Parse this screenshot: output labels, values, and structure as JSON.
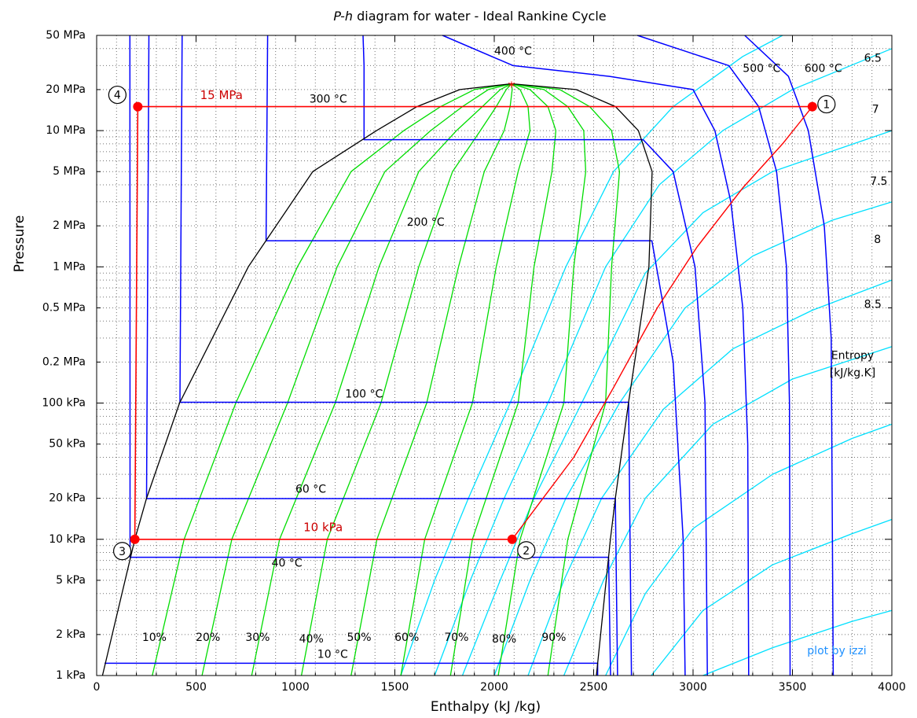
{
  "chart_data": {
    "type": "line",
    "title_italic": "P-h",
    "title_rest": " diagram for water - Ideal Rankine Cycle",
    "xlabel": "Enthalpy (kJ /kg)",
    "ylabel": "Pressure",
    "xlim": [
      0,
      4000
    ],
    "ylim_kPa": [
      1,
      50000
    ],
    "y_scale": "log",
    "grid": true,
    "x_ticks": [
      {
        "value": 0,
        "label": "0"
      },
      {
        "value": 500,
        "label": "500"
      },
      {
        "value": 1000,
        "label": "1000"
      },
      {
        "value": 1500,
        "label": "1500"
      },
      {
        "value": 2000,
        "label": "2000"
      },
      {
        "value": 2500,
        "label": "2500"
      },
      {
        "value": 3000,
        "label": "3000"
      },
      {
        "value": 3500,
        "label": "3500"
      },
      {
        "value": 4000,
        "label": "4000"
      }
    ],
    "y_ticks": [
      {
        "value": 50000,
        "label": "50 MPa"
      },
      {
        "value": 20000,
        "label": "20 MPa"
      },
      {
        "value": 10000,
        "label": "10 MPa"
      },
      {
        "value": 5000,
        "label": "5 MPa"
      },
      {
        "value": 2000,
        "label": "2 MPa"
      },
      {
        "value": 1000,
        "label": "1 MPa"
      },
      {
        "value": 500,
        "label": "0.5 MPa"
      },
      {
        "value": 200,
        "label": "0.2 MPa"
      },
      {
        "value": 100,
        "label": "100 kPa"
      },
      {
        "value": 50,
        "label": "50 kPa"
      },
      {
        "value": 20,
        "label": "20 kPa"
      },
      {
        "value": 10,
        "label": "10 kPa"
      },
      {
        "value": 5,
        "label": "5 kPa"
      },
      {
        "value": 2,
        "label": "2 kPa"
      },
      {
        "value": 1,
        "label": "1 kPa"
      }
    ],
    "colors": {
      "cycle": "#ff0000",
      "dome": "#000000",
      "isotherm": "#0000ff",
      "quality": "#00dd00",
      "entropy": "#00e0ff",
      "credit": "#1e90ff",
      "label_red": "#cc0000"
    },
    "saturation_dome": [
      [
        29.3,
        1
      ],
      [
        192,
        10
      ],
      [
        251,
        20
      ],
      [
        417,
        100
      ],
      [
        763,
        1000
      ],
      [
        1087,
        5000
      ],
      [
        1408,
        10000
      ],
      [
        1611,
        15000
      ],
      [
        1827,
        20000
      ],
      [
        2087,
        22064
      ],
      [
        2412,
        20000
      ],
      [
        2610,
        15000
      ],
      [
        2725,
        10000
      ],
      [
        2794,
        5000
      ],
      [
        2778,
        1000
      ],
      [
        2675,
        100
      ],
      [
        2609,
        20
      ],
      [
        2584,
        10
      ],
      [
        2514,
        1
      ]
    ],
    "quality_lines": [
      {
        "label": "10%",
        "points": [
          [
            280,
            1
          ],
          [
            440,
            10
          ],
          [
            700,
            100
          ],
          [
            1010,
            1000
          ],
          [
            1280,
            5000
          ],
          [
            1545,
            10000
          ],
          [
            1730,
            15000
          ],
          [
            1900,
            20000
          ],
          [
            2087,
            22064
          ]
        ]
      },
      {
        "label": "20%",
        "points": [
          [
            530,
            1
          ],
          [
            680,
            10
          ],
          [
            960,
            100
          ],
          [
            1210,
            1000
          ],
          [
            1450,
            5000
          ],
          [
            1680,
            10000
          ],
          [
            1840,
            15000
          ],
          [
            1970,
            20000
          ],
          [
            2087,
            22064
          ]
        ]
      },
      {
        "label": "30%",
        "points": [
          [
            780,
            1
          ],
          [
            920,
            10
          ],
          [
            1200,
            100
          ],
          [
            1420,
            1000
          ],
          [
            1620,
            5000
          ],
          [
            1810,
            10000
          ],
          [
            1940,
            15000
          ],
          [
            2030,
            20000
          ],
          [
            2087,
            22064
          ]
        ]
      },
      {
        "label": "40%",
        "points": [
          [
            1030,
            1
          ],
          [
            1160,
            10
          ],
          [
            1430,
            100
          ],
          [
            1620,
            1000
          ],
          [
            1790,
            5000
          ],
          [
            1930,
            10000
          ],
          [
            2010,
            15000
          ],
          [
            2060,
            20000
          ],
          [
            2087,
            22064
          ]
        ]
      },
      {
        "label": "50%",
        "points": [
          [
            1280,
            1
          ],
          [
            1410,
            10
          ],
          [
            1660,
            100
          ],
          [
            1820,
            1000
          ],
          [
            1950,
            5000
          ],
          [
            2050,
            10000
          ],
          [
            2080,
            15000
          ],
          [
            2090,
            20000
          ],
          [
            2087,
            22064
          ]
        ]
      },
      {
        "label": "60%",
        "points": [
          [
            1530,
            1
          ],
          [
            1650,
            10
          ],
          [
            1890,
            100
          ],
          [
            2010,
            1000
          ],
          [
            2120,
            5000
          ],
          [
            2180,
            10000
          ],
          [
            2170,
            15000
          ],
          [
            2130,
            20000
          ],
          [
            2087,
            22064
          ]
        ]
      },
      {
        "label": "70%",
        "points": [
          [
            1780,
            1
          ],
          [
            1890,
            10
          ],
          [
            2120,
            100
          ],
          [
            2200,
            1000
          ],
          [
            2290,
            5000
          ],
          [
            2310,
            10000
          ],
          [
            2270,
            15000
          ],
          [
            2180,
            20000
          ],
          [
            2087,
            22064
          ]
        ]
      },
      {
        "label": "80%",
        "points": [
          [
            2020,
            1
          ],
          [
            2130,
            10
          ],
          [
            2350,
            100
          ],
          [
            2400,
            1000
          ],
          [
            2460,
            5000
          ],
          [
            2450,
            10000
          ],
          [
            2370,
            15000
          ],
          [
            2250,
            20000
          ],
          [
            2087,
            22064
          ]
        ]
      },
      {
        "label": "90%",
        "points": [
          [
            2270,
            1
          ],
          [
            2370,
            10
          ],
          [
            2560,
            100
          ],
          [
            2590,
            1000
          ],
          [
            2630,
            5000
          ],
          [
            2590,
            10000
          ],
          [
            2480,
            15000
          ],
          [
            2330,
            20000
          ],
          [
            2087,
            22064
          ]
        ]
      }
    ],
    "quality_label_positions": [
      [
        290,
        1.8
      ],
      [
        560,
        1.8
      ],
      [
        810,
        1.8
      ],
      [
        1080,
        1.75
      ],
      [
        1320,
        1.8
      ],
      [
        1560,
        1.8
      ],
      [
        1810,
        1.8
      ],
      [
        2050,
        1.75
      ],
      [
        2300,
        1.8
      ]
    ],
    "isotherms": [
      {
        "label": "10 °C",
        "label_at": [
          1110,
          1.35
        ],
        "points": [
          [
            40,
            1.23
          ],
          [
            2520,
            1.23
          ],
          [
            2520,
            1
          ]
        ]
      },
      {
        "label": "40 °C",
        "label_at": [
          880,
          6.3
        ],
        "points": [
          [
            167,
            50000
          ],
          [
            168,
            7.38
          ],
          [
            2575,
            7.38
          ],
          [
            2585,
            1
          ]
        ]
      },
      {
        "label": "60 °C",
        "label_at": [
          1000,
          22
        ],
        "points": [
          [
            263,
            50000
          ],
          [
            251,
            19.9
          ],
          [
            2609,
            19.9
          ],
          [
            2620,
            1
          ]
        ]
      },
      {
        "label": "100 °C",
        "label_at": [
          1250,
          110
        ],
        "points": [
          [
            430,
            50000
          ],
          [
            419,
            101.4
          ],
          [
            2676,
            101.4
          ],
          [
            2690,
            1
          ]
        ]
      },
      {
        "label": "200 °C",
        "label_at": [
          1560,
          2000
        ],
        "points": [
          [
            860,
            50000
          ],
          [
            852,
            1555
          ],
          [
            2793,
            1555
          ],
          [
            2900,
            200
          ],
          [
            2950,
            10
          ],
          [
            2960,
            1
          ]
        ]
      },
      {
        "label": "300 °C",
        "label_at": [
          1070,
          16000
        ],
        "points": [
          [
            1340,
            50000
          ],
          [
            1345,
            30000
          ],
          [
            1345,
            8581
          ],
          [
            2749,
            8581
          ],
          [
            2900,
            5000
          ],
          [
            3010,
            1000
          ],
          [
            3060,
            100
          ],
          [
            3072,
            1
          ]
        ]
      },
      {
        "label": "400 °C",
        "label_at": [
          2000,
          36000
        ],
        "points": [
          [
            1740,
            50000
          ],
          [
            2095,
            30000
          ],
          [
            2580,
            25000
          ],
          [
            3000,
            20000
          ],
          [
            3110,
            10000
          ],
          [
            3190,
            3000
          ],
          [
            3250,
            500
          ],
          [
            3275,
            50
          ],
          [
            3280,
            1
          ]
        ]
      },
      {
        "label": "500 °C",
        "label_at": [
          3250,
          27000
        ],
        "points": [
          [
            2720,
            50000
          ],
          [
            3180,
            30000
          ],
          [
            3330,
            15000
          ],
          [
            3420,
            5000
          ],
          [
            3470,
            1000
          ],
          [
            3485,
            100
          ],
          [
            3488,
            1
          ]
        ]
      },
      {
        "label": "600 °C",
        "label_at": [
          3560,
          27000
        ],
        "points": [
          [
            3260,
            50000
          ],
          [
            3480,
            25000
          ],
          [
            3580,
            10000
          ],
          [
            3660,
            2000
          ],
          [
            3695,
            300
          ],
          [
            3705,
            1
          ]
        ]
      }
    ],
    "entropy_lines": [
      {
        "label": "6.5",
        "label_at": [
          3860,
          32000
        ],
        "points": [
          [
            1530,
            1
          ],
          [
            1700,
            5
          ],
          [
            1870,
            20
          ],
          [
            2080,
            100
          ],
          [
            2360,
            1000
          ],
          [
            2600,
            5000
          ],
          [
            2900,
            15000
          ],
          [
            3250,
            35000
          ],
          [
            3450,
            50000
          ]
        ]
      },
      {
        "label": "7",
        "label_at": [
          3900,
          13500
        ],
        "points": [
          [
            1700,
            1
          ],
          [
            1880,
            5
          ],
          [
            2050,
            20
          ],
          [
            2270,
            100
          ],
          [
            2560,
            1000
          ],
          [
            2830,
            4000
          ],
          [
            3150,
            10000
          ],
          [
            3500,
            20000
          ],
          [
            4000,
            40000
          ]
        ]
      },
      {
        "label": "7.5",
        "label_at": [
          3890,
          4000
        ],
        "points": [
          [
            1840,
            1
          ],
          [
            2030,
            5
          ],
          [
            2200,
            20
          ],
          [
            2440,
            100
          ],
          [
            2760,
            900
          ],
          [
            3050,
            2500
          ],
          [
            3400,
            5000
          ],
          [
            4000,
            10000
          ]
        ]
      },
      {
        "label": "8",
        "label_at": [
          3910,
          1500
        ],
        "points": [
          [
            2000,
            1
          ],
          [
            2180,
            5
          ],
          [
            2360,
            20
          ],
          [
            2630,
            100
          ],
          [
            2960,
            500
          ],
          [
            3300,
            1200
          ],
          [
            3700,
            2200
          ],
          [
            4000,
            3000
          ]
        ]
      },
      {
        "label": "8.5",
        "label_at": [
          3860,
          500
        ],
        "points": [
          [
            2170,
            1
          ],
          [
            2350,
            5
          ],
          [
            2540,
            20
          ],
          [
            2850,
            90
          ],
          [
            3200,
            250
          ],
          [
            3600,
            480
          ],
          [
            4000,
            800
          ]
        ]
      },
      {
        "label": "",
        "label_at": null,
        "points": [
          [
            2350,
            1
          ],
          [
            2550,
            5
          ],
          [
            2760,
            20
          ],
          [
            3100,
            70
          ],
          [
            3500,
            150
          ],
          [
            4000,
            260
          ]
        ]
      },
      {
        "label": "",
        "label_at": null,
        "points": [
          [
            2560,
            1
          ],
          [
            2760,
            4
          ],
          [
            3000,
            12
          ],
          [
            3400,
            30
          ],
          [
            3800,
            55
          ],
          [
            4000,
            70
          ]
        ]
      },
      {
        "label": "",
        "label_at": null,
        "points": [
          [
            2790,
            1
          ],
          [
            3050,
            3
          ],
          [
            3400,
            6.5
          ],
          [
            3800,
            11
          ],
          [
            4000,
            14
          ]
        ]
      },
      {
        "label": "",
        "label_at": null,
        "points": [
          [
            3050,
            1
          ],
          [
            3400,
            1.6
          ],
          [
            3800,
            2.5
          ],
          [
            4000,
            3
          ]
        ]
      }
    ],
    "cycle": {
      "points": [
        {
          "id": "1",
          "h": 3600,
          "p_kPa": 15000
        },
        {
          "id": "2",
          "h": 2090,
          "p_kPa": 10
        },
        {
          "id": "3",
          "h": 192,
          "p_kPa": 10
        },
        {
          "id": "4",
          "h": 207,
          "p_kPa": 15000
        }
      ],
      "expansion_path": [
        [
          3600,
          15000
        ],
        [
          3450,
          8000
        ],
        [
          3250,
          3800
        ],
        [
          3020,
          1400
        ],
        [
          2820,
          500
        ],
        [
          2600,
          130
        ],
        [
          2400,
          40
        ],
        [
          2090,
          10
        ]
      ],
      "high_pressure_label": "15 MPa",
      "high_pressure_label_at": [
        520,
        17000
      ],
      "low_pressure_label": "10 kPa",
      "low_pressure_label_at": [
        1040,
        11.5
      ],
      "critical_point": {
        "h": 2087,
        "p_kPa": 22064,
        "marker": "*"
      }
    },
    "entropy_legend": [
      "Entropy",
      "[kJ/kg.K]"
    ],
    "credit": "plot by izzi"
  }
}
